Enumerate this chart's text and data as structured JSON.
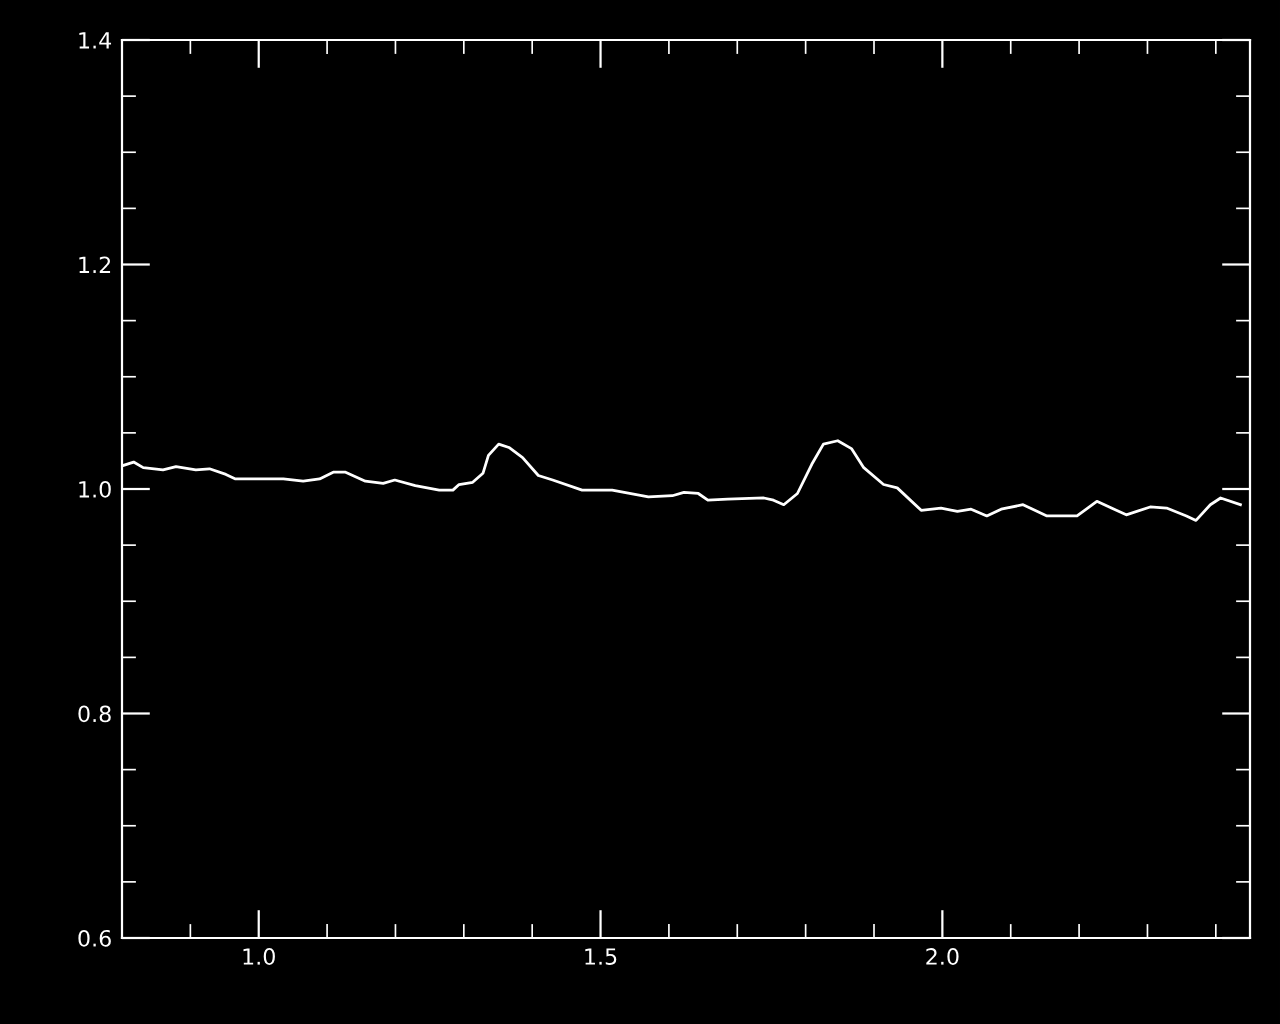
{
  "chart_data": {
    "type": "line",
    "xlim": [
      0.8,
      2.45
    ],
    "ylim": [
      0.6,
      1.4
    ],
    "xticks": [
      {
        "value": 1,
        "label": "1.0"
      },
      1.5,
      {
        "value": 2,
        "label": "2.0"
      }
    ],
    "yticks": [
      0.6,
      0.8,
      {
        "value": 1,
        "label": "1.0"
      },
      1.2,
      1.4
    ],
    "grid": false,
    "series": [
      {
        "color": "#ffffff",
        "x": [
          0.802,
          0.817,
          0.831,
          0.86,
          0.879,
          0.908,
          0.928,
          0.952,
          0.966,
          1.007,
          1.036,
          1.065,
          1.089,
          1.109,
          1.127,
          1.156,
          1.182,
          1.199,
          1.229,
          1.264,
          1.284,
          1.293,
          1.313,
          1.328,
          1.336,
          1.351,
          1.366,
          1.386,
          1.409,
          1.43,
          1.473,
          1.517,
          1.57,
          1.605,
          1.622,
          1.643,
          1.657,
          1.686,
          1.739,
          1.753,
          1.768,
          1.788,
          1.809,
          1.826,
          1.847,
          1.867,
          1.885,
          1.914,
          1.934,
          1.969,
          1.998,
          2.022,
          2.042,
          2.065,
          2.086,
          2.118,
          2.153,
          2.197,
          2.226,
          2.269,
          2.304,
          2.328,
          2.357,
          2.371,
          2.392,
          2.407,
          2.436
        ],
        "values": [
          1.021,
          1.024,
          1.019,
          1.017,
          1.02,
          1.017,
          1.018,
          1.013,
          1.009,
          1.009,
          1.009,
          1.007,
          1.009,
          1.015,
          1.015,
          1.007,
          1.005,
          1.008,
          1.003,
          0.999,
          0.999,
          1.004,
          1.006,
          1.014,
          1.03,
          1.04,
          1.037,
          1.028,
          1.012,
          1.008,
          0.999,
          0.999,
          0.993,
          0.994,
          0.997,
          0.996,
          0.99,
          0.991,
          0.992,
          0.99,
          0.986,
          0.996,
          1.022,
          1.04,
          1.043,
          1.036,
          1.019,
          1.004,
          1.001,
          0.981,
          0.983,
          0.98,
          0.982,
          0.976,
          0.982,
          0.986,
          0.976,
          0.976,
          0.989,
          0.977,
          0.984,
          0.983,
          0.976,
          0.972,
          0.986,
          0.992,
          0.986
        ]
      }
    ]
  }
}
